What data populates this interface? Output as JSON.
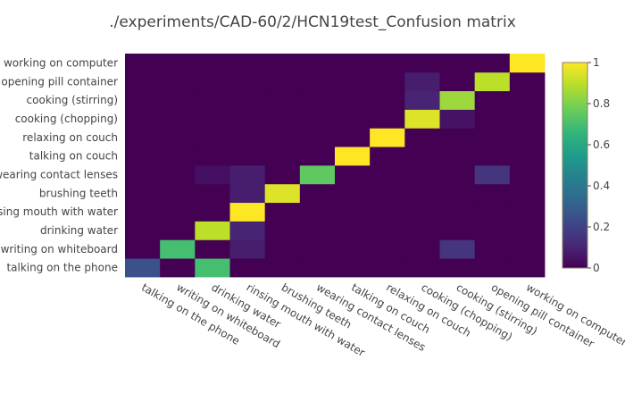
{
  "chart_data": {
    "type": "heatmap",
    "title": "./experiments/CAD-60/2/HCN19test_Confusion matrix",
    "xlabel": "",
    "ylabel": "",
    "x_categories": [
      "talking on the phone",
      "writing on whiteboard",
      "drinking water",
      "rinsing mouth with water",
      "brushing teeth",
      "wearing contact lenses",
      "talking on couch",
      "relaxing on couch",
      "cooking (chopping)",
      "cooking (stirring)",
      "opening pill container",
      "working on computer"
    ],
    "y_categories": [
      "talking on the phone",
      "writing on whiteboard",
      "drinking water",
      "rinsing mouth with water",
      "brushing teeth",
      "wearing contact lenses",
      "talking on couch",
      "relaxing on couch",
      "cooking (chopping)",
      "cooking (stirring)",
      "opening pill container",
      "working on computer"
    ],
    "z": [
      [
        0.25,
        0,
        0.7,
        0,
        0,
        0,
        0,
        0,
        0,
        0,
        0,
        0
      ],
      [
        0,
        0.7,
        0,
        0.08,
        0,
        0,
        0,
        0,
        0,
        0.15,
        0,
        0
      ],
      [
        0,
        0,
        0.9,
        0.1,
        0,
        0,
        0,
        0,
        0,
        0,
        0,
        0
      ],
      [
        0,
        0,
        0,
        1,
        0,
        0,
        0,
        0,
        0,
        0,
        0,
        0
      ],
      [
        0,
        0,
        0,
        0.08,
        0.95,
        0,
        0,
        0,
        0,
        0,
        0,
        0
      ],
      [
        0,
        0,
        0.04,
        0.08,
        0,
        0.75,
        0,
        0,
        0,
        0,
        0.15,
        0
      ],
      [
        0,
        0,
        0,
        0,
        0,
        0,
        1,
        0,
        0,
        0,
        0,
        0
      ],
      [
        0,
        0,
        0,
        0,
        0,
        0,
        0,
        1,
        0,
        0,
        0,
        0
      ],
      [
        0,
        0,
        0,
        0,
        0,
        0,
        0,
        0,
        0.95,
        0.05,
        0,
        0
      ],
      [
        0,
        0,
        0,
        0,
        0,
        0,
        0,
        0,
        0.1,
        0.85,
        0,
        0
      ],
      [
        0,
        0,
        0,
        0,
        0,
        0,
        0,
        0,
        0.08,
        0,
        0.9,
        0
      ],
      [
        0,
        0,
        0,
        0,
        0,
        0,
        0,
        0,
        0,
        0,
        0,
        1
      ]
    ],
    "zlim": [
      0,
      1
    ],
    "colorbar_ticks": [
      "0",
      "0.2",
      "0.4",
      "0.6",
      "0.8",
      "1"
    ],
    "colorscale": "viridis",
    "colorscale_stops": [
      "#440154",
      "#482878",
      "#3e4989",
      "#31688e",
      "#26828e",
      "#1f9e89",
      "#35b779",
      "#6ece58",
      "#b5de2b",
      "#fde725"
    ]
  }
}
